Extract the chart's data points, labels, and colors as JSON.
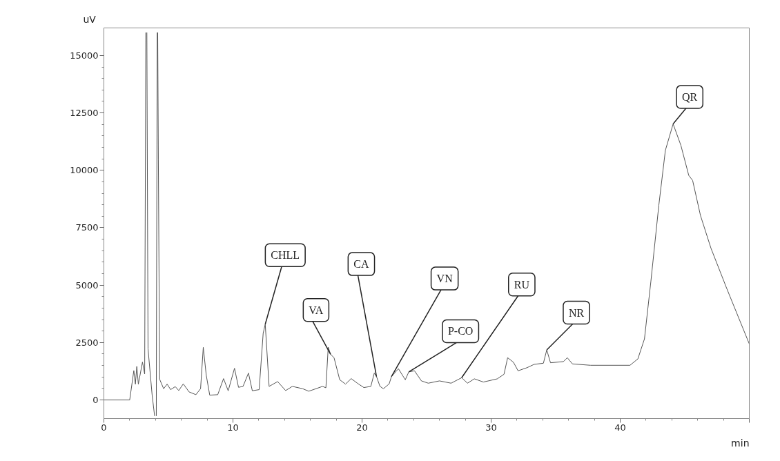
{
  "chart_data": {
    "type": "line",
    "xlabel": "min",
    "ylabel": "uV",
    "xlim": [
      0,
      50
    ],
    "ylim": [
      -810,
      16200
    ],
    "xticks": [
      0,
      10,
      20,
      30,
      40,
      {
        "value": 50,
        "label": null
      }
    ],
    "yticks": [
      0,
      2500,
      5000,
      7500,
      10000,
      12500,
      15000
    ],
    "grid": false,
    "marker": "none",
    "line_style": "solid",
    "x": [
      0,
      2.0,
      2.32,
      2.44,
      2.55,
      2.67,
      2.99,
      3.16,
      3.25,
      3.29,
      3.33,
      3.42,
      3.74,
      3.93,
      4.0,
      4.06,
      4.13,
      4.15,
      4.17,
      4.22,
      4.32,
      4.63,
      4.9,
      5.17,
      5.53,
      5.8,
      6.15,
      6.6,
      7.13,
      7.49,
      7.7,
      7.93,
      8.2,
      8.82,
      9.27,
      9.63,
      10.12,
      10.43,
      10.78,
      11.2,
      11.5,
      12.03,
      12.34,
      12.5,
      12.8,
      13.46,
      14.08,
      14.6,
      15.4,
      15.87,
      16.94,
      17.2,
      17.38,
      17.56,
      17.83,
      18.27,
      18.72,
      19.16,
      19.61,
      20.14,
      20.68,
      20.95,
      21.12,
      21.39,
      21.66,
      22.1,
      22.28,
      22.82,
      23.35,
      23.62,
      24.06,
      24.6,
      25.13,
      26.0,
      26.9,
      27.72,
      28.17,
      28.7,
      29.4,
      30.48,
      31.0,
      31.28,
      31.73,
      32.09,
      32.8,
      33.33,
      34.05,
      34.31,
      34.6,
      35.6,
      35.9,
      36.3,
      37.7,
      40.76,
      41.37,
      41.88,
      42.38,
      42.99,
      43.5,
      44.1,
      44.7,
      45.31,
      45.61,
      46.22,
      47.03,
      48.25,
      50.0
    ],
    "series": [
      {
        "color": "#555555",
        "values": [
          0,
          0,
          1280,
          690,
          1460,
          690,
          1650,
          1130,
          16000,
          null,
          16000,
          2230,
          200,
          -700,
          null,
          -700,
          16000,
          null,
          16000,
          10500,
          900,
          490,
          690,
          450,
          580,
          410,
          700,
          350,
          230,
          490,
          2290,
          1080,
          210,
          230,
          930,
          400,
          1380,
          550,
          590,
          1170,
          400,
          450,
          2900,
          3300,
          590,
          800,
          410,
          590,
          490,
          380,
          590,
          530,
          2300,
          1990,
          1840,
          880,
          690,
          930,
          740,
          540,
          590,
          1170,
          1020,
          590,
          490,
          700,
          1020,
          1360,
          880,
          1220,
          1270,
          830,
          730,
          830,
          730,
          970,
          730,
          920,
          780,
          920,
          1120,
          1840,
          1640,
          1270,
          1410,
          1550,
          1600,
          2180,
          1620,
          1670,
          1840,
          1570,
          1510,
          1510,
          1790,
          2660,
          5180,
          8470,
          10870,
          12020,
          11090,
          9780,
          9560,
          8030,
          6610,
          4860,
          2440
        ]
      }
    ],
    "annotations": [
      {
        "text": "CHLL",
        "x": 12.5,
        "y": 3300
      },
      {
        "text": "VA",
        "x": 17.56,
        "y": 1990
      },
      {
        "text": "CA",
        "x": 21.12,
        "y": 1020
      },
      {
        "text": "VN",
        "x": 22.28,
        "y": 1020
      },
      {
        "text": "P-CO",
        "x": 23.62,
        "y": 1220
      },
      {
        "text": "RU",
        "x": 27.72,
        "y": 970
      },
      {
        "text": "NR",
        "x": 34.31,
        "y": 2180
      },
      {
        "text": "QR",
        "x": 44.1,
        "y": 12020
      }
    ]
  }
}
